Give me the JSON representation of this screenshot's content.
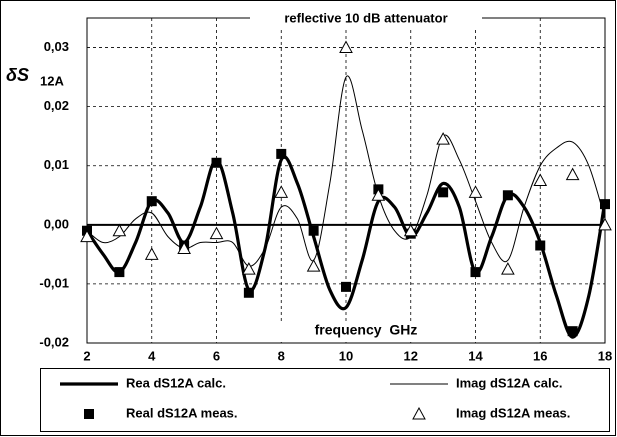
{
  "chart_data": {
    "type": "line",
    "title": "reflective 10 dB attenuator",
    "y_label": {
      "text": "δS",
      "subscript": "12A"
    },
    "annotation": "frequency  GHz",
    "xlim": [
      2,
      18
    ],
    "xticks": [
      2,
      4,
      6,
      8,
      10,
      12,
      14,
      16,
      18
    ],
    "ylim": [
      -0.02,
      0.035
    ],
    "yticks": [
      {
        "value": -0.02,
        "label": "-0,02"
      },
      {
        "value": -0.01,
        "label": "-0,01"
      },
      {
        "value": 0,
        "label": "0,00"
      },
      {
        "value": 0.01,
        "label": "0,01"
      },
      {
        "value": 0.02,
        "label": "0,02"
      },
      {
        "value": 0.03,
        "label": "0,03"
      }
    ],
    "grid": true,
    "legend": "bottom",
    "series": [
      {
        "name": "Rea dS12A calc.",
        "color": "#000000",
        "style": "line",
        "width": 3.2,
        "x": [
          2,
          2.5,
          3,
          3.5,
          4,
          4.5,
          5,
          5.5,
          6,
          6.5,
          7,
          7.5,
          8,
          8.5,
          9,
          9.5,
          10,
          10.5,
          11,
          11.5,
          12,
          12.5,
          13,
          13.5,
          14,
          14.5,
          15,
          15.5,
          16,
          16.5,
          17,
          17.5,
          18
        ],
        "values": [
          -0.001,
          -0.005,
          -0.008,
          -0.003,
          0.004,
          0.002,
          -0.003,
          0.003,
          0.011,
          0.002,
          -0.011,
          -0.004,
          0.011,
          0.007,
          -0.002,
          -0.011,
          -0.014,
          -0.006,
          0.004,
          0.003,
          -0.002,
          0.002,
          0.007,
          0.003,
          -0.008,
          -0.002,
          0.005,
          0.003,
          -0.003,
          -0.012,
          -0.019,
          -0.012,
          0.004
        ]
      },
      {
        "name": "Imag dS12A calc.",
        "color": "#000000",
        "style": "line",
        "width": 1,
        "x": [
          2,
          2.5,
          3,
          3.5,
          4,
          4.5,
          5,
          5.5,
          6,
          6.5,
          7,
          7.5,
          8,
          8.5,
          9,
          9.5,
          10,
          10.5,
          11,
          11.5,
          12,
          12.5,
          13,
          13.5,
          14,
          14.5,
          15,
          15.5,
          16,
          16.5,
          17,
          17.5,
          18
        ],
        "values": [
          -0.001,
          -0.003,
          -0.002,
          0.001,
          0.002,
          -0.002,
          -0.004,
          -0.003,
          -0.003,
          -0.003,
          -0.007,
          -0.004,
          0.003,
          0.001,
          -0.006,
          0.007,
          0.025,
          0.016,
          0.005,
          -0.001,
          -0.002,
          0.005,
          0.015,
          0.011,
          0.004,
          -0.003,
          -0.006,
          0.003,
          0.01,
          0.013,
          0.014,
          0.01,
          0.001
        ]
      },
      {
        "name": "Real dS12A meas.",
        "color": "#000000",
        "style": "marker",
        "marker": "square",
        "x": [
          2,
          3,
          4,
          5,
          6,
          7,
          8,
          9,
          10,
          11,
          12,
          13,
          14,
          15,
          16,
          17,
          18
        ],
        "values": [
          -0.001,
          -0.008,
          0.004,
          -0.0035,
          0.0105,
          -0.0115,
          0.012,
          -0.001,
          -0.0105,
          0.006,
          -0.0015,
          0.0055,
          -0.008,
          0.005,
          -0.0035,
          -0.018,
          0.0035
        ]
      },
      {
        "name": "Imag dS12A meas.",
        "color": "#000000",
        "style": "marker",
        "marker": "triangle",
        "x": [
          2,
          3,
          4,
          5,
          6,
          7,
          8,
          9,
          10,
          11,
          12,
          13,
          14,
          15,
          16,
          17,
          18
        ],
        "values": [
          -0.002,
          -0.001,
          -0.005,
          -0.004,
          -0.0015,
          -0.0075,
          0.0055,
          -0.007,
          0.03,
          0.005,
          -0.001,
          0.0145,
          0.0055,
          -0.0075,
          0.0075,
          0.0085,
          0.0
        ]
      }
    ]
  }
}
